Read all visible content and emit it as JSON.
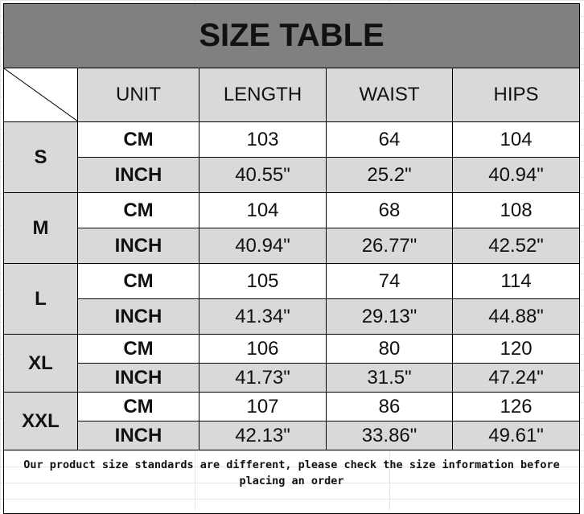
{
  "title": "SIZE TABLE",
  "headers": [
    "UNIT",
    "LENGTH",
    "WAIST",
    "HIPS"
  ],
  "rows": [
    {
      "size": "S",
      "cm": {
        "unit": "CM",
        "length": "103",
        "waist": "64",
        "hips": "104"
      },
      "inch": {
        "unit": "INCH",
        "length": "40.55\"",
        "waist": "25.2\"",
        "hips": "40.94\""
      }
    },
    {
      "size": "M",
      "cm": {
        "unit": "CM",
        "length": "104",
        "waist": "68",
        "hips": "108"
      },
      "inch": {
        "unit": "INCH",
        "length": "40.94\"",
        "waist": "26.77\"",
        "hips": "42.52\""
      }
    },
    {
      "size": "L",
      "cm": {
        "unit": "CM",
        "length": "105",
        "waist": "74",
        "hips": "114"
      },
      "inch": {
        "unit": "INCH",
        "length": "41.34\"",
        "waist": "29.13\"",
        "hips": "44.88\""
      }
    },
    {
      "size": "XL",
      "cm": {
        "unit": "CM",
        "length": "106",
        "waist": "80",
        "hips": "120"
      },
      "inch": {
        "unit": "INCH",
        "length": "41.73\"",
        "waist": "31.5\"",
        "hips": "47.24\""
      }
    },
    {
      "size": "XXL",
      "cm": {
        "unit": "CM",
        "length": "107",
        "waist": "86",
        "hips": "126"
      },
      "inch": {
        "unit": "INCH",
        "length": "42.13\"",
        "waist": "33.86\"",
        "hips": "49.61\""
      }
    }
  ],
  "note": "Our product size standards are different, please check the size information before placing an order",
  "colors": {
    "title_bg": "#808080",
    "header_bg": "#d9d9d9"
  }
}
